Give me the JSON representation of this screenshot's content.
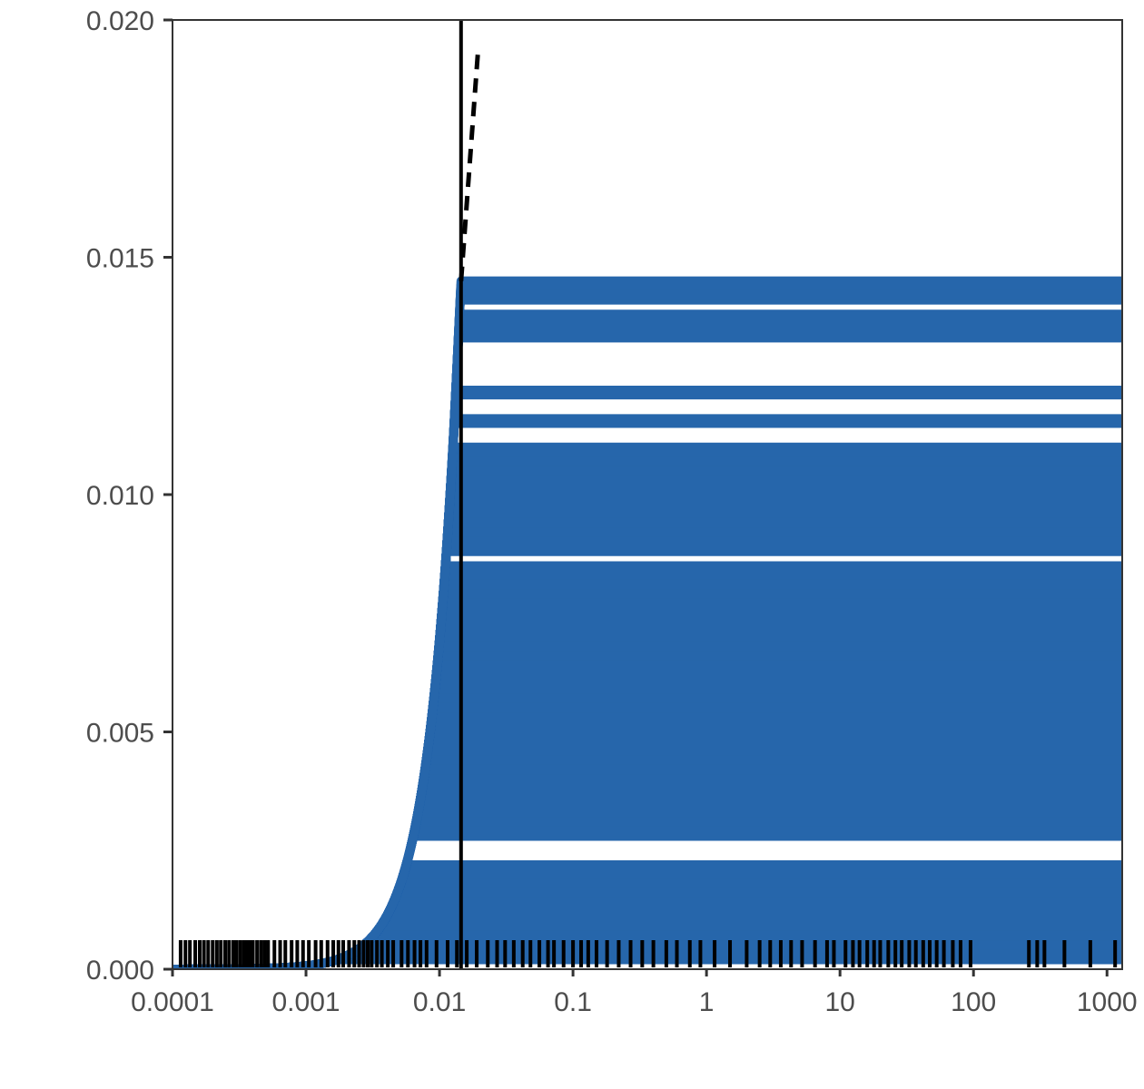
{
  "chart_data": {
    "type": "line",
    "title": "",
    "xlabel": "",
    "ylabel": "",
    "x_scale": "log10",
    "xlim": [
      0.0001,
      1300
    ],
    "ylim": [
      0.0,
      0.02
    ],
    "x_ticks": [
      {
        "value": 0.0001,
        "label": "0.0001"
      },
      {
        "value": 0.001,
        "label": "0.001"
      },
      {
        "value": 0.01,
        "label": "0.01"
      },
      {
        "value": 0.1,
        "label": "0.1"
      },
      {
        "value": 1,
        "label": "1"
      },
      {
        "value": 10,
        "label": "10"
      },
      {
        "value": 100,
        "label": "100"
      },
      {
        "value": 1000,
        "label": "1000"
      }
    ],
    "y_ticks": [
      {
        "value": 0.0,
        "label": "0.000"
      },
      {
        "value": 0.005,
        "label": "0.005"
      },
      {
        "value": 0.01,
        "label": "0.010"
      },
      {
        "value": 0.015,
        "label": "0.015"
      },
      {
        "value": 0.02,
        "label": "0.020"
      }
    ],
    "grid": false,
    "curve": {
      "description": "family of curves rising as a power of x, capped at each threshold value",
      "rise_exponent": 2,
      "x_cap": 0.0145,
      "y_max": 0.0145,
      "color": "#2666ab"
    },
    "cap_levels": [
      0.0002,
      0.0003,
      0.0004,
      0.0005,
      0.0006,
      0.0007,
      0.0008,
      0.0009,
      0.001,
      0.0011,
      0.0012,
      0.0013,
      0.0014,
      0.0015,
      0.0016,
      0.0017,
      0.0018,
      0.0019,
      0.002,
      0.0021,
      0.0022,
      0.0028,
      0.0029,
      0.003,
      0.0031,
      0.0032,
      0.0033,
      0.0034,
      0.0035,
      0.0036,
      0.0037,
      0.0038,
      0.0039,
      0.004,
      0.0041,
      0.0042,
      0.0043,
      0.0044,
      0.0045,
      0.0046,
      0.0047,
      0.0048,
      0.0049,
      0.005,
      0.0051,
      0.0052,
      0.0053,
      0.0054,
      0.0055,
      0.0056,
      0.0057,
      0.0058,
      0.0059,
      0.006,
      0.0061,
      0.0062,
      0.0063,
      0.0064,
      0.0065,
      0.0066,
      0.0067,
      0.0068,
      0.0069,
      0.007,
      0.0071,
      0.0072,
      0.0073,
      0.0074,
      0.0075,
      0.0076,
      0.0077,
      0.0078,
      0.0079,
      0.008,
      0.0081,
      0.0082,
      0.0083,
      0.0084,
      0.0085,
      0.0088,
      0.0089,
      0.009,
      0.0091,
      0.0092,
      0.0093,
      0.0094,
      0.0095,
      0.0096,
      0.0097,
      0.0098,
      0.0099,
      0.01,
      0.0101,
      0.0102,
      0.0103,
      0.0104,
      0.0105,
      0.0106,
      0.0107,
      0.0108,
      0.0109,
      0.011,
      0.0115,
      0.0116,
      0.0121,
      0.0122,
      0.0133,
      0.0134,
      0.0135,
      0.0136,
      0.0137,
      0.0138,
      0.0141,
      0.0142,
      0.0143,
      0.0144,
      0.0145
    ],
    "reference_lines": [
      {
        "type": "vertical",
        "x": 0.0145,
        "style": "solid",
        "color": "#000000"
      },
      {
        "type": "curve",
        "style": "dashed",
        "color": "#000000",
        "x_start": 0.0145,
        "x_end": 0.0195,
        "y_start": 0.0145,
        "y_end": 0.0194
      }
    ],
    "rug": {
      "color": "#000000",
      "x": [
        0.000115,
        0.000125,
        0.000135,
        0.000148,
        0.00016,
        0.000172,
        0.000185,
        0.0002,
        0.000215,
        0.00023,
        0.000248,
        0.000265,
        0.000285,
        0.0003,
        0.00032,
        0.00034,
        0.00036,
        0.00038,
        0.0004,
        0.00043,
        0.00046,
        0.00049,
        0.00052,
        0.00058,
        0.00064,
        0.0007,
        0.00078,
        0.00086,
        0.00095,
        0.00105,
        0.00118,
        0.0013,
        0.00145,
        0.0016,
        0.00175,
        0.0019,
        0.0021,
        0.0023,
        0.0025,
        0.0027,
        0.0029,
        0.0031,
        0.0034,
        0.0037,
        0.0041,
        0.0045,
        0.0052,
        0.0058,
        0.0065,
        0.0072,
        0.008,
        0.0095,
        0.0115,
        0.0135,
        0.016,
        0.019,
        0.023,
        0.027,
        0.031,
        0.036,
        0.042,
        0.048,
        0.056,
        0.065,
        0.072,
        0.085,
        0.1,
        0.115,
        0.13,
        0.15,
        0.18,
        0.22,
        0.27,
        0.33,
        0.4,
        0.5,
        0.6,
        0.75,
        0.9,
        1.15,
        1.5,
        2,
        2.5,
        3,
        3.6,
        4.3,
        5.2,
        6.5,
        8,
        9,
        11,
        12.5,
        14,
        16,
        18,
        20,
        23,
        26,
        29,
        33,
        37,
        42,
        47,
        53,
        60,
        70,
        80,
        95,
        260,
        300,
        340,
        480,
        750,
        1150
      ]
    }
  }
}
